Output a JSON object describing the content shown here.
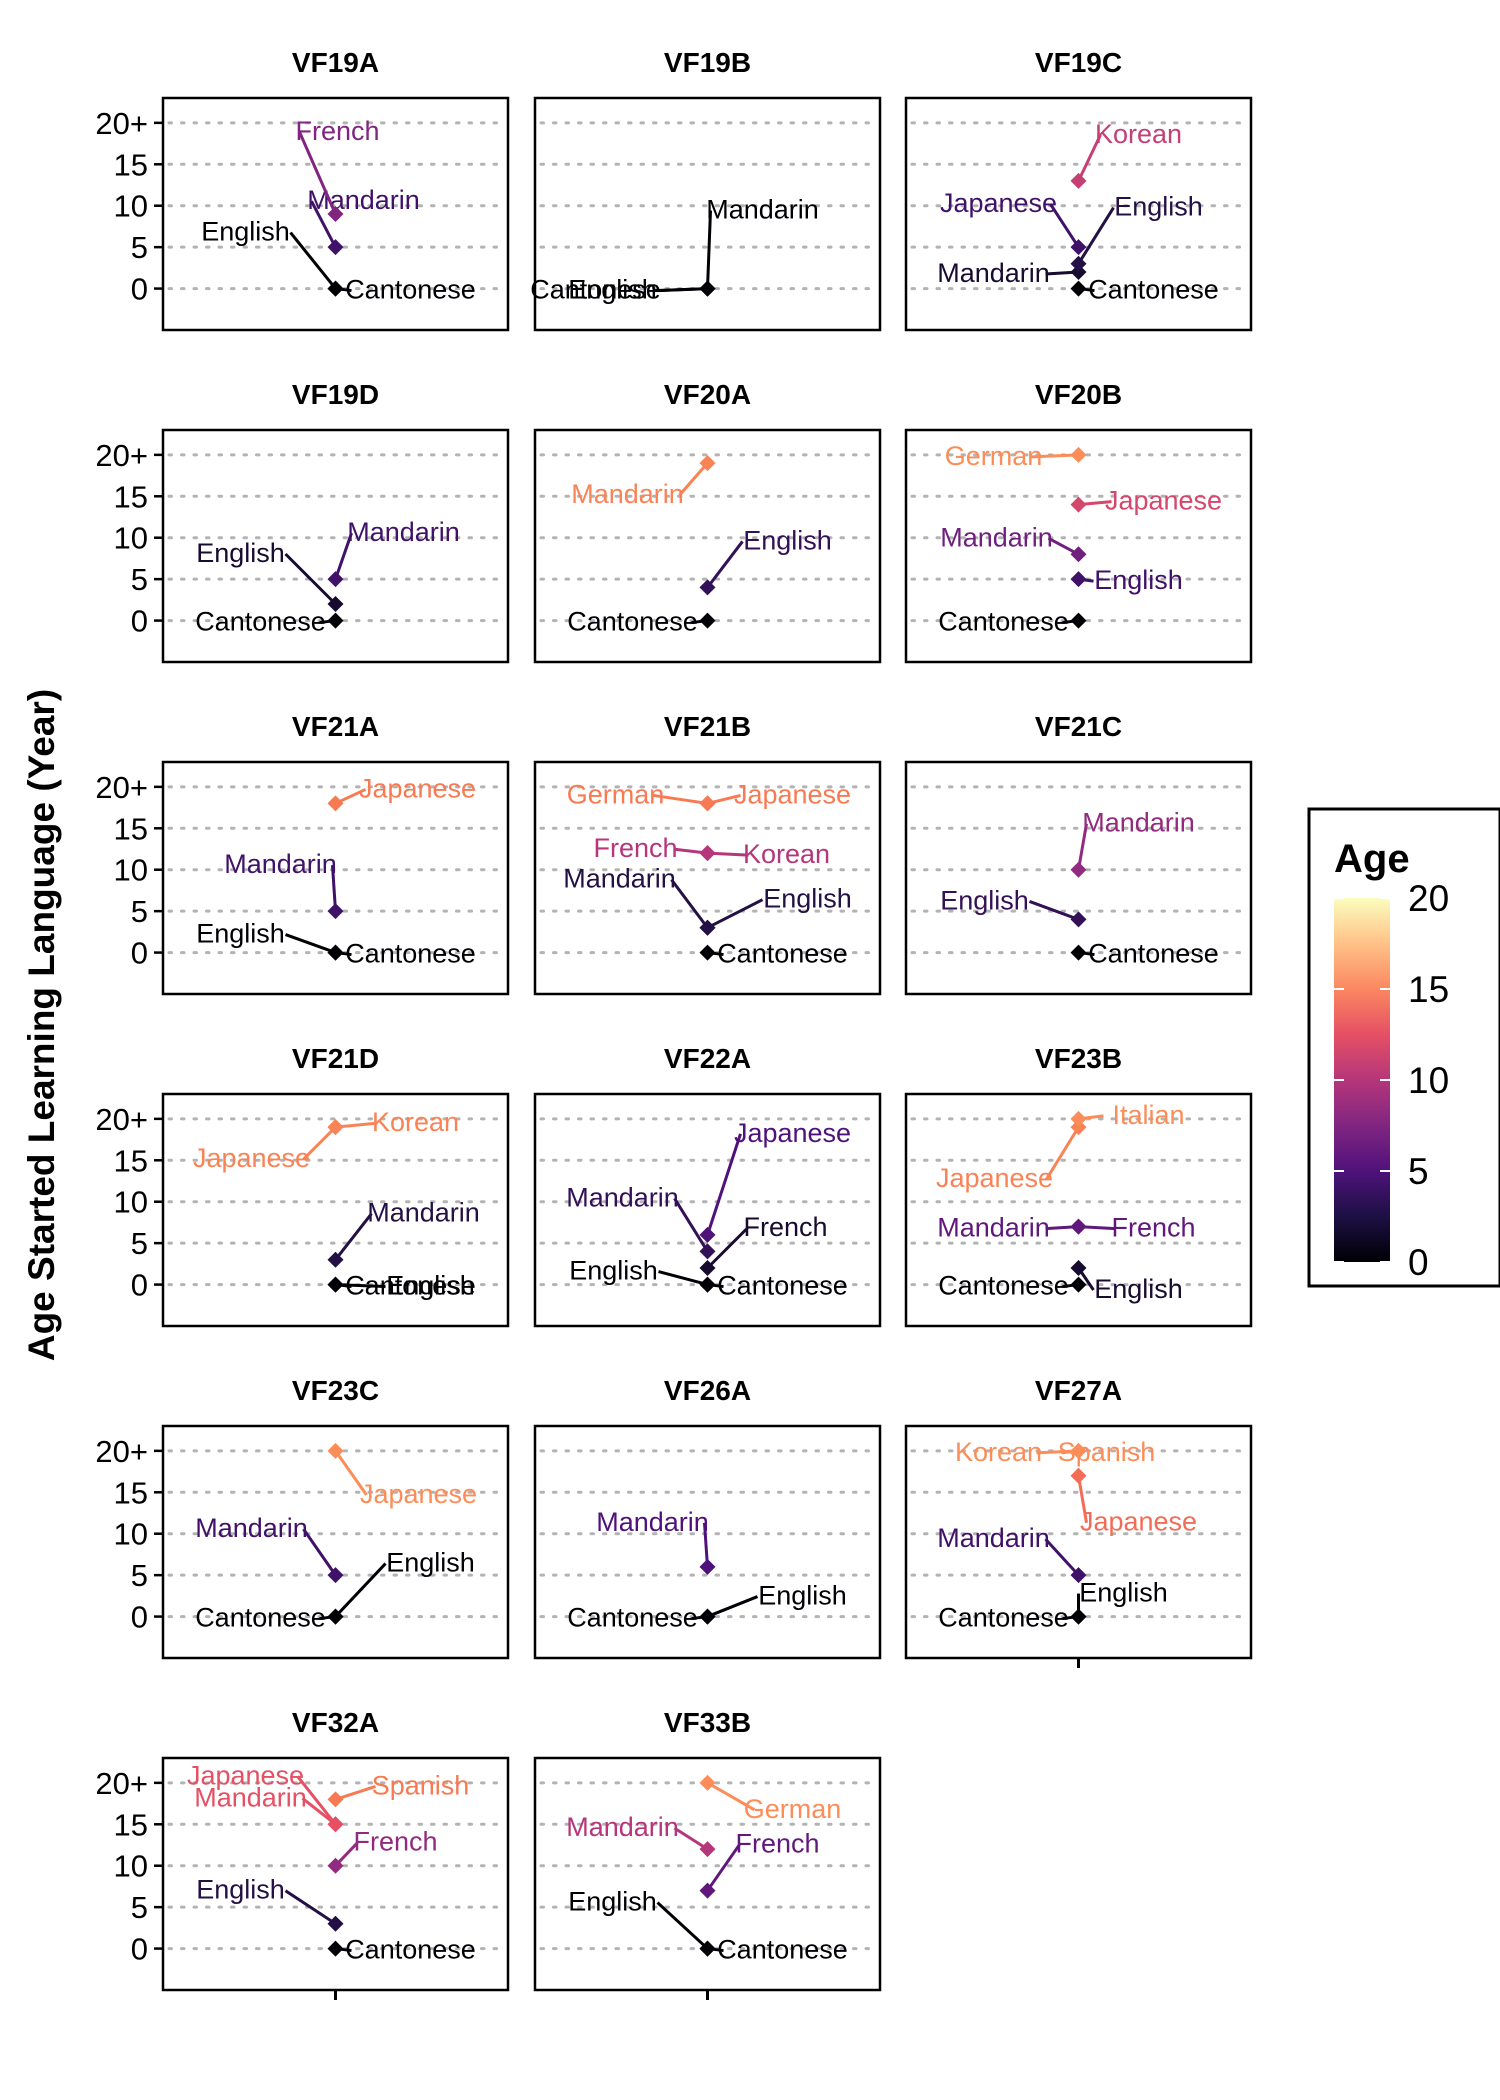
{
  "chart_data": {
    "type": "scatter",
    "ylabel": "Age Started Learning Language (Year)",
    "ylim": [
      -5,
      23
    ],
    "y_ticks": [
      {
        "value": 0,
        "label": "0"
      },
      {
        "value": 5,
        "label": "5"
      },
      {
        "value": 10,
        "label": "10"
      },
      {
        "value": 15,
        "label": "15"
      },
      {
        "value": 20,
        "label": "20+"
      }
    ],
    "grid": "horizontal dotted",
    "color_legend": {
      "title": "Age",
      "min": 0,
      "max": 20,
      "ticks": [
        "0",
        "5",
        "10",
        "15",
        "20"
      ],
      "placement": "right"
    },
    "panels": [
      {
        "name": "VF19A",
        "points": [
          {
            "language": "Cantonese",
            "age": 0
          },
          {
            "language": "English",
            "age": 0
          },
          {
            "language": "Mandarin",
            "age": 5
          },
          {
            "language": "French",
            "age": 9
          }
        ]
      },
      {
        "name": "VF19B",
        "points": [
          {
            "language": "Cantonese",
            "age": 0
          },
          {
            "language": "English",
            "age": 0
          },
          {
            "language": "Mandarin",
            "age": 0
          }
        ]
      },
      {
        "name": "VF19C",
        "points": [
          {
            "language": "Cantonese",
            "age": 0
          },
          {
            "language": "Mandarin",
            "age": 2
          },
          {
            "language": "English",
            "age": 3
          },
          {
            "language": "Japanese",
            "age": 5
          },
          {
            "language": "Korean",
            "age": 13
          }
        ]
      },
      {
        "name": "VF19D",
        "points": [
          {
            "language": "Cantonese",
            "age": 0
          },
          {
            "language": "English",
            "age": 2
          },
          {
            "language": "Mandarin",
            "age": 5
          }
        ]
      },
      {
        "name": "VF20A",
        "points": [
          {
            "language": "Cantonese",
            "age": 0
          },
          {
            "language": "English",
            "age": 4
          },
          {
            "language": "Mandarin",
            "age": 19
          }
        ]
      },
      {
        "name": "VF20B",
        "points": [
          {
            "language": "Cantonese",
            "age": 0
          },
          {
            "language": "English",
            "age": 5
          },
          {
            "language": "Mandarin",
            "age": 8
          },
          {
            "language": "Japanese",
            "age": 14
          },
          {
            "language": "German",
            "age": 20
          }
        ]
      },
      {
        "name": "VF21A",
        "points": [
          {
            "language": "Cantonese",
            "age": 0
          },
          {
            "language": "English",
            "age": 0
          },
          {
            "language": "Mandarin",
            "age": 5
          },
          {
            "language": "Japanese",
            "age": 18
          }
        ]
      },
      {
        "name": "VF21B",
        "points": [
          {
            "language": "Cantonese",
            "age": 0
          },
          {
            "language": "Mandarin",
            "age": 3
          },
          {
            "language": "English",
            "age": 3
          },
          {
            "language": "French",
            "age": 12
          },
          {
            "language": "Korean",
            "age": 12
          },
          {
            "language": "German",
            "age": 18
          },
          {
            "language": "Japanese",
            "age": 18
          }
        ]
      },
      {
        "name": "VF21C",
        "points": [
          {
            "language": "Cantonese",
            "age": 0
          },
          {
            "language": "English",
            "age": 4
          },
          {
            "language": "Mandarin",
            "age": 10
          }
        ]
      },
      {
        "name": "VF21D",
        "points": [
          {
            "language": "Cantonese",
            "age": 0
          },
          {
            "language": "English",
            "age": 0
          },
          {
            "language": "Mandarin",
            "age": 3
          },
          {
            "language": "Japanese",
            "age": 19
          },
          {
            "language": "Korean",
            "age": 19
          }
        ]
      },
      {
        "name": "VF22A",
        "points": [
          {
            "language": "Cantonese",
            "age": 0
          },
          {
            "language": "English",
            "age": 0
          },
          {
            "language": "French",
            "age": 2
          },
          {
            "language": "Mandarin",
            "age": 4
          },
          {
            "language": "Japanese",
            "age": 6
          }
        ]
      },
      {
        "name": "VF23B",
        "points": [
          {
            "language": "Cantonese",
            "age": 0
          },
          {
            "language": "English",
            "age": 2
          },
          {
            "language": "Mandarin",
            "age": 7
          },
          {
            "language": "French",
            "age": 7
          },
          {
            "language": "Japanese",
            "age": 19
          },
          {
            "language": "Italian",
            "age": 20
          }
        ]
      },
      {
        "name": "VF23C",
        "points": [
          {
            "language": "Cantonese",
            "age": 0
          },
          {
            "language": "English",
            "age": 0
          },
          {
            "language": "Mandarin",
            "age": 5
          },
          {
            "language": "Japanese",
            "age": 20
          }
        ]
      },
      {
        "name": "VF26A",
        "points": [
          {
            "language": "Cantonese",
            "age": 0
          },
          {
            "language": "English",
            "age": 0
          },
          {
            "language": "Mandarin",
            "age": 6
          }
        ]
      },
      {
        "name": "VF27A",
        "points": [
          {
            "language": "Cantonese",
            "age": 0
          },
          {
            "language": "English",
            "age": 0
          },
          {
            "language": "Mandarin",
            "age": 5
          },
          {
            "language": "Japanese",
            "age": 17
          },
          {
            "language": "Korean",
            "age": 20
          },
          {
            "language": "Spanish",
            "age": 20
          }
        ]
      },
      {
        "name": "VF32A",
        "points": [
          {
            "language": "Cantonese",
            "age": 0
          },
          {
            "language": "English",
            "age": 3
          },
          {
            "language": "French",
            "age": 10
          },
          {
            "language": "Mandarin",
            "age": 15
          },
          {
            "language": "Japanese",
            "age": 15
          },
          {
            "language": "Spanish",
            "age": 18
          }
        ]
      },
      {
        "name": "VF33B",
        "points": [
          {
            "language": "Cantonese",
            "age": 0
          },
          {
            "language": "English",
            "age": 0
          },
          {
            "language": "French",
            "age": 7
          },
          {
            "language": "Mandarin",
            "age": 12
          },
          {
            "language": "German",
            "age": 20
          }
        ]
      }
    ]
  }
}
